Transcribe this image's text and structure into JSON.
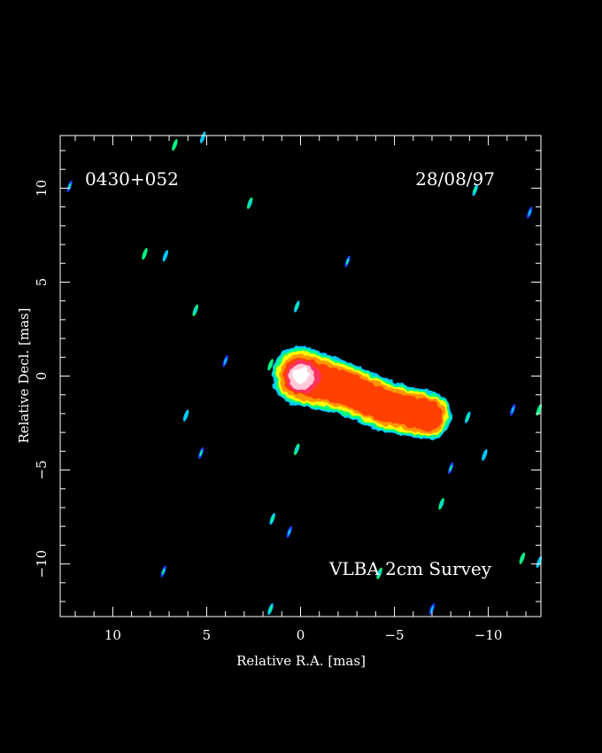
{
  "chart_data": {
    "type": "heatmap",
    "source_label": "0430+052",
    "date_label": "28/08/97",
    "survey_label": "VLBA 2cm Survey",
    "xlabel": "Relative R.A. [mas]",
    "ylabel": "Relative Decl. [mas]",
    "xlim": [
      12.8,
      -12.8
    ],
    "ylim": [
      -12.8,
      12.8
    ],
    "x_ticks": [
      {
        "value": 10,
        "label": "10"
      },
      {
        "value": 5,
        "label": "5"
      },
      {
        "value": 0,
        "label": "0"
      },
      {
        "value": -5,
        "label": "−5"
      },
      {
        "value": -10,
        "label": "−10"
      }
    ],
    "y_ticks": [
      {
        "value": 10,
        "label": "10"
      },
      {
        "value": 5,
        "label": "5"
      },
      {
        "value": 0,
        "label": "0"
      },
      {
        "value": -5,
        "label": "−5"
      },
      {
        "value": -10,
        "label": "−10"
      }
    ],
    "minor_tick_step": 1,
    "background_color": "#000000",
    "colormap": [
      "#1a3cff",
      "#00c8ff",
      "#00ff80",
      "#ffff00",
      "#ff9600",
      "#ff4000",
      "#ff3060",
      "#ffc8d8",
      "#ffffff"
    ],
    "jet_components": [
      {
        "x": 0.0,
        "y": 0.0,
        "peak": 1.0
      },
      {
        "x": -2.5,
        "y": -0.7,
        "peak": 0.55
      },
      {
        "x": -4.5,
        "y": -1.6,
        "peak": 0.55
      },
      {
        "x": -6.8,
        "y": -2.1,
        "peak": 0.45
      }
    ],
    "noise_blobs": [
      {
        "x": 6.7,
        "y": 12.3
      },
      {
        "x": 5.2,
        "y": 12.7
      },
      {
        "x": 12.3,
        "y": 10.1
      },
      {
        "x": 2.7,
        "y": 9.2
      },
      {
        "x": -9.3,
        "y": 9.9
      },
      {
        "x": -12.2,
        "y": 8.7
      },
      {
        "x": 8.3,
        "y": 6.5
      },
      {
        "x": 7.2,
        "y": 6.4
      },
      {
        "x": -2.5,
        "y": 6.1
      },
      {
        "x": 5.6,
        "y": 3.5
      },
      {
        "x": 0.2,
        "y": 3.7
      },
      {
        "x": 4.0,
        "y": 0.8
      },
      {
        "x": 1.6,
        "y": 0.6
      },
      {
        "x": 6.1,
        "y": -2.1
      },
      {
        "x": 5.3,
        "y": -4.1
      },
      {
        "x": 0.2,
        "y": -3.9
      },
      {
        "x": -8.9,
        "y": -2.2
      },
      {
        "x": -11.3,
        "y": -1.8
      },
      {
        "x": -12.7,
        "y": -1.8
      },
      {
        "x": -9.8,
        "y": -4.2
      },
      {
        "x": -8.0,
        "y": -4.9
      },
      {
        "x": -7.5,
        "y": -6.8
      },
      {
        "x": 1.5,
        "y": -7.6
      },
      {
        "x": 0.6,
        "y": -8.3
      },
      {
        "x": -11.8,
        "y": -9.7
      },
      {
        "x": -12.7,
        "y": -9.9
      },
      {
        "x": 7.3,
        "y": -10.4
      },
      {
        "x": -4.2,
        "y": -10.5
      },
      {
        "x": 1.6,
        "y": -12.4
      },
      {
        "x": -7.0,
        "y": -12.4
      }
    ]
  }
}
